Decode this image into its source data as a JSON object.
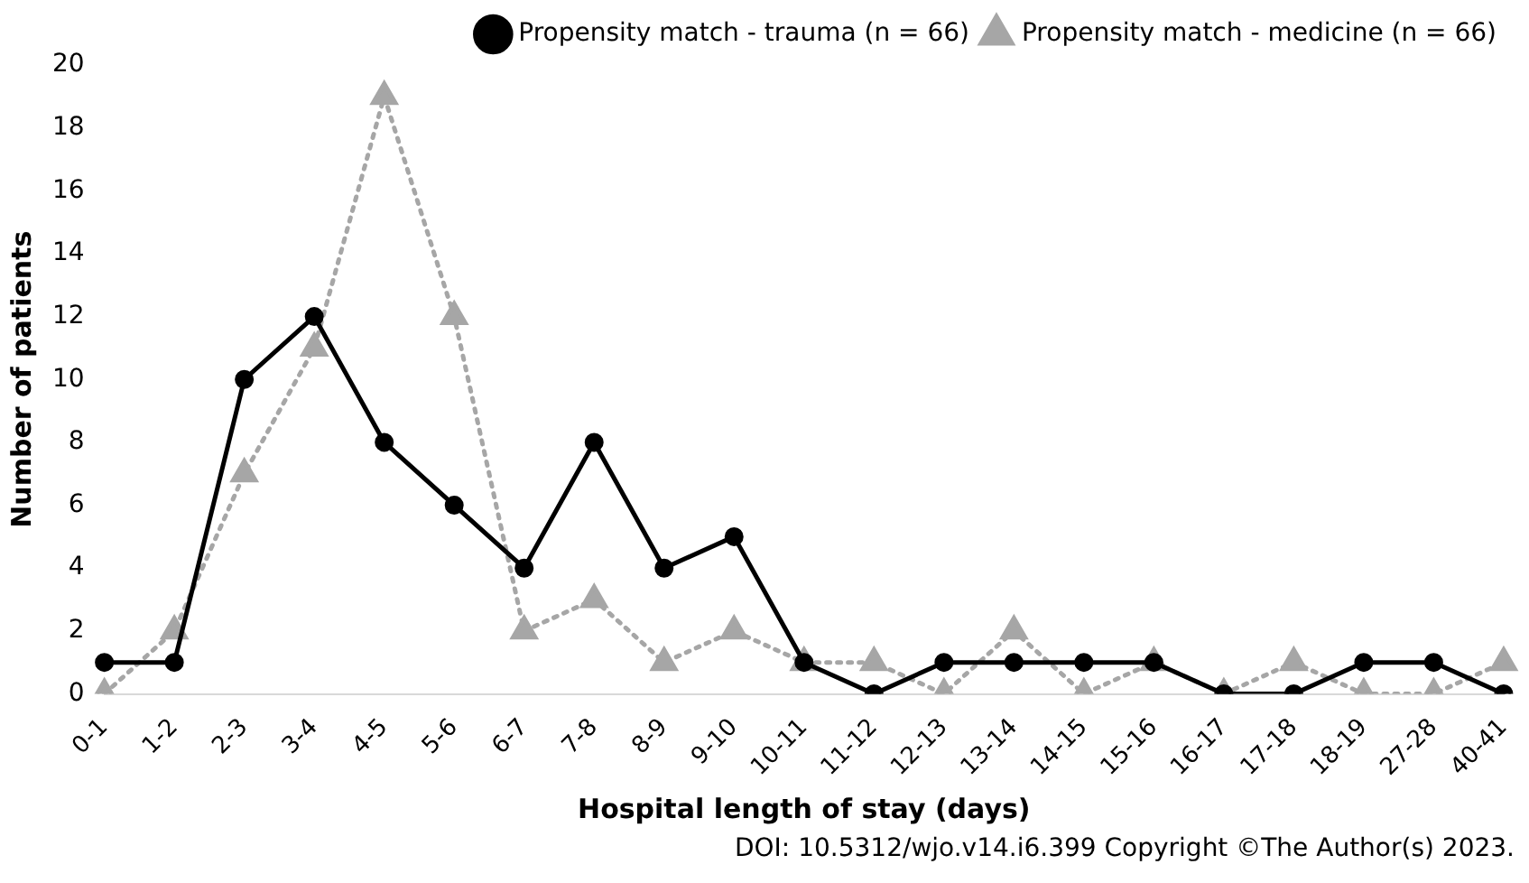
{
  "chart_data": {
    "type": "line",
    "xlabel": "Hospital length of stay (days)",
    "ylabel": "Number of patients",
    "categories": [
      "0-1",
      "1-2",
      "2-3",
      "3-4",
      "4-5",
      "5-6",
      "6-7",
      "7-8",
      "8-9",
      "9-10",
      "10-11",
      "11-12",
      "12-13",
      "13-14",
      "14-15",
      "15-16",
      "16-17",
      "17-18",
      "18-19",
      "27-28",
      "40-41"
    ],
    "series": [
      {
        "name": "Propensity match - trauma (n = 66)",
        "color": "#000000",
        "marker": "circle",
        "line_style": "solid",
        "values": [
          1,
          1,
          10,
          12,
          8,
          6,
          4,
          8,
          4,
          5,
          1,
          0,
          1,
          1,
          1,
          1,
          0,
          0,
          1,
          1,
          0
        ]
      },
      {
        "name": "Propensity match - medicine (n = 66)",
        "color": "#a6a6a6",
        "marker": "triangle",
        "line_style": "dotted",
        "values": [
          0,
          2,
          7,
          11,
          19,
          12,
          2,
          3,
          1,
          2,
          1,
          1,
          0,
          2,
          0,
          1,
          0,
          1,
          0,
          0,
          1
        ]
      }
    ],
    "ylim": [
      0,
      20
    ],
    "yticks": [
      0,
      2,
      4,
      6,
      8,
      10,
      12,
      14,
      16,
      18,
      20
    ],
    "grid": false,
    "legend": "top right",
    "annotations": [
      "DOI: 10.5312/wjo.v14.i6.399  Copyright ©The Author(s) 2023."
    ]
  }
}
